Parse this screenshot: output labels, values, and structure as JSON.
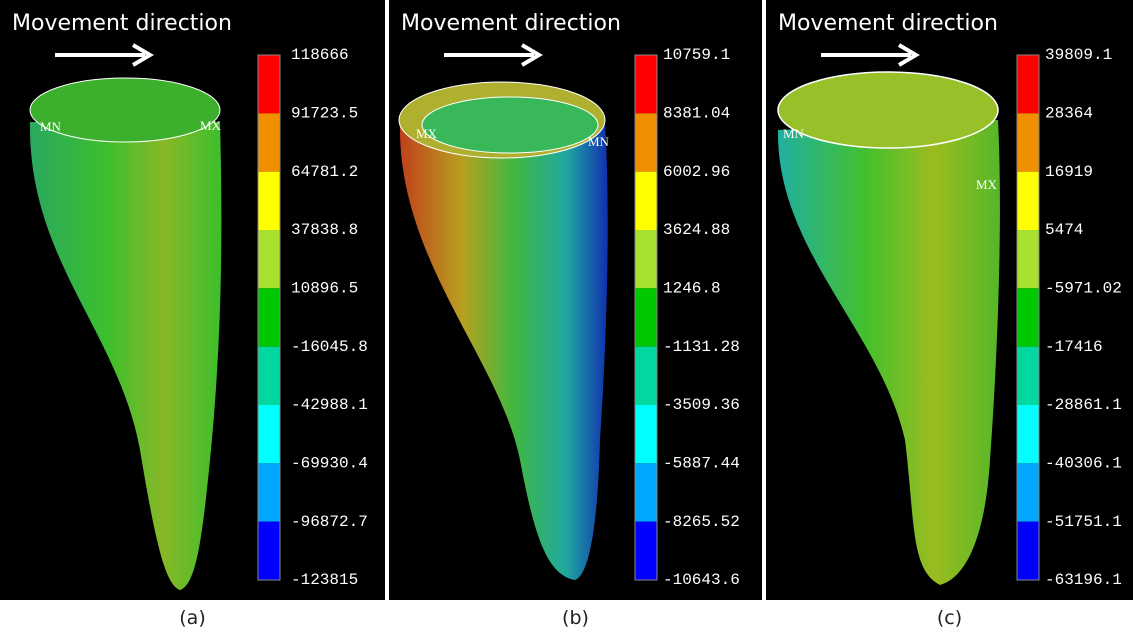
{
  "panels": [
    {
      "title": "Movement direction",
      "legend": [
        "118666",
        "91723.5",
        "64781.2",
        "37838.8",
        "10896.5",
        "-16045.8",
        "-42988.1",
        "-69930.4",
        "-96872.7",
        "-123815"
      ],
      "markers": [
        "MN",
        "MX"
      ],
      "caption": "(a)"
    },
    {
      "title": "Movement direction",
      "legend": [
        "10759.1",
        "8381.04",
        "6002.96",
        "3624.88",
        "1246.8",
        "-1131.28",
        "-3509.36",
        "-5887.44",
        "-8265.52",
        "-10643.6"
      ],
      "markers": [
        "MX",
        "MN"
      ],
      "caption": "(b)"
    },
    {
      "title": "Movement direction",
      "legend": [
        "39809.1",
        "28364",
        "16919",
        "5474",
        "-5971.02",
        "-17416",
        "-28861.1",
        "-40306.1",
        "-51751.1",
        "-63196.1"
      ],
      "markers": [
        "MN",
        "MX"
      ],
      "caption": "(c)"
    }
  ]
}
